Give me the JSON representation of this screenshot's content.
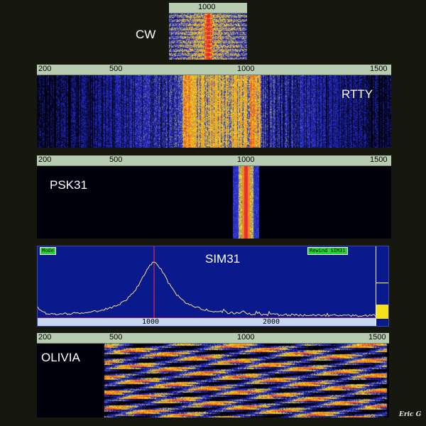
{
  "title": "",
  "panels": {
    "cw": {
      "label": "CW",
      "ticks": [
        "1000"
      ]
    },
    "rtty": {
      "label": "RTTY",
      "ticks": [
        "200",
        "500",
        "1000",
        "1500"
      ]
    },
    "psk31": {
      "label": "PSK31",
      "ticks": [
        "200",
        "500",
        "1000",
        "1500"
      ]
    },
    "sim31": {
      "label": "SIM31",
      "mode_button": "Mode",
      "rewind_button": "Rewind SIM31",
      "axis_ticks": [
        "1000",
        "2000"
      ]
    },
    "olivia": {
      "label": "OLIVIA",
      "ticks": [
        "200",
        "500",
        "1000",
        "1500"
      ]
    }
  },
  "signature": "Eric G",
  "colors": {
    "background": "#16170e",
    "scale_bar": "#b8ccb2",
    "waterfall_dark": "#000010",
    "waterfall_blue": "#1c2bd4",
    "waterfall_yellow": "#f5e01a",
    "waterfall_orange": "#f28a1e",
    "waterfall_red": "#e31c3a",
    "spectrum_bg": "#0a1a8c",
    "spectrum_trace": "#f3e28a",
    "marker_red": "#ff2a55",
    "button_green": "#22d933"
  }
}
